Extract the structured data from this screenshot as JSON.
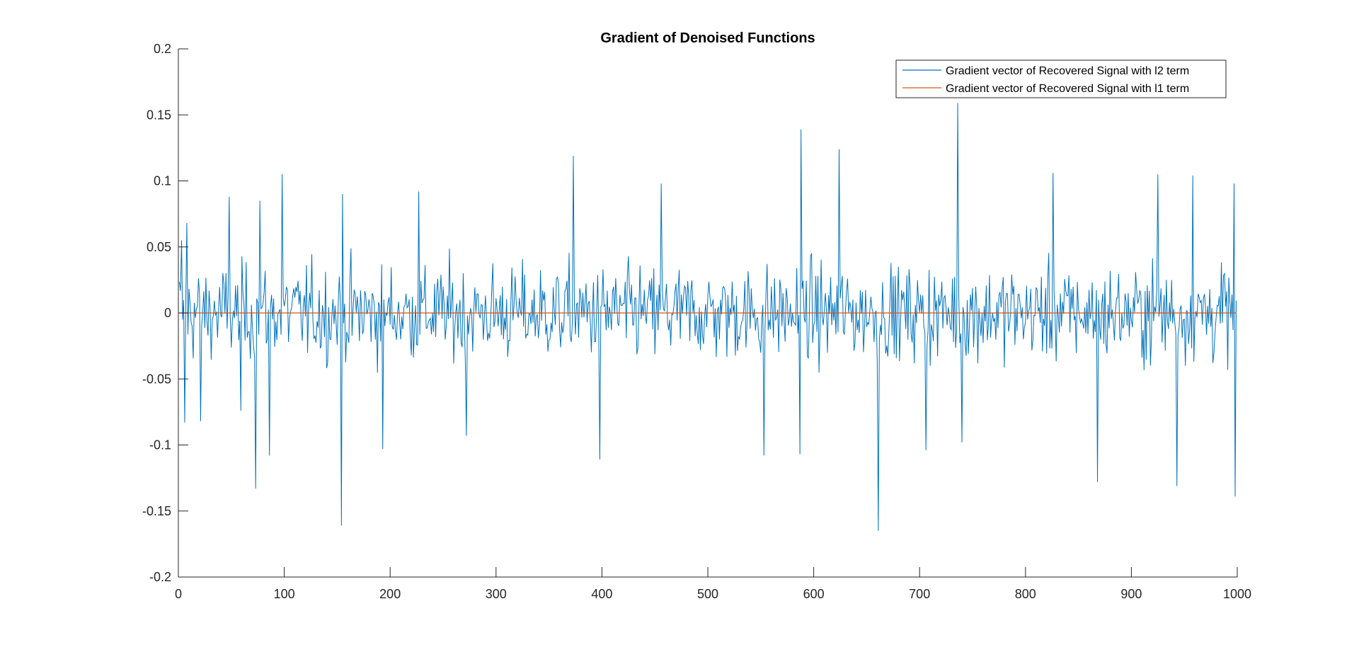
{
  "chart_data": {
    "type": "line",
    "title": "Gradient of Denoised Functions",
    "xlabel": "",
    "ylabel": "",
    "xlim": [
      0,
      1000
    ],
    "ylim": [
      -0.2,
      0.2
    ],
    "x_ticks": [
      0,
      100,
      200,
      300,
      400,
      500,
      600,
      700,
      800,
      900,
      1000
    ],
    "x_tick_labels": [
      "0",
      "100",
      "200",
      "300",
      "400",
      "500",
      "600",
      "700",
      "800",
      "900",
      "1000"
    ],
    "y_ticks": [
      0.2,
      0.15,
      0.1,
      0.05,
      0,
      -0.05,
      -0.1,
      -0.15,
      -0.2
    ],
    "y_tick_labels": [
      "0.2",
      "0.15",
      "0.1",
      "0.05",
      "0",
      "-0.05",
      "-0.1",
      "-0.15",
      "-0.2"
    ],
    "grid": false,
    "legend_position": "top-right",
    "series": [
      {
        "name": "Gradient vector of Recovered Signal with l2 term",
        "color": "#0072BD",
        "x_range": [
          1,
          999
        ],
        "amplitude": 0.03,
        "notable_points": [
          {
            "x": 3,
            "y": 0.055
          },
          {
            "x": 6,
            "y": -0.083
          },
          {
            "x": 8,
            "y": 0.068
          },
          {
            "x": 21,
            "y": -0.082
          },
          {
            "x": 48,
            "y": 0.088
          },
          {
            "x": 59,
            "y": -0.074
          },
          {
            "x": 73,
            "y": -0.133
          },
          {
            "x": 77,
            "y": 0.085
          },
          {
            "x": 86,
            "y": -0.108
          },
          {
            "x": 98,
            "y": 0.105
          },
          {
            "x": 154,
            "y": -0.161
          },
          {
            "x": 155,
            "y": 0.09
          },
          {
            "x": 193,
            "y": -0.103
          },
          {
            "x": 227,
            "y": 0.092
          },
          {
            "x": 272,
            "y": -0.093
          },
          {
            "x": 373,
            "y": 0.119
          },
          {
            "x": 398,
            "y": -0.111
          },
          {
            "x": 456,
            "y": 0.098
          },
          {
            "x": 553,
            "y": -0.108
          },
          {
            "x": 588,
            "y": 0.139
          },
          {
            "x": 587,
            "y": -0.107
          },
          {
            "x": 624,
            "y": 0.124
          },
          {
            "x": 661,
            "y": -0.165
          },
          {
            "x": 706,
            "y": -0.104
          },
          {
            "x": 736,
            "y": 0.159
          },
          {
            "x": 740,
            "y": -0.098
          },
          {
            "x": 826,
            "y": 0.106
          },
          {
            "x": 868,
            "y": -0.128
          },
          {
            "x": 925,
            "y": 0.105
          },
          {
            "x": 943,
            "y": -0.131
          },
          {
            "x": 958,
            "y": 0.104
          },
          {
            "x": 997,
            "y": 0.098
          },
          {
            "x": 998,
            "y": -0.139
          }
        ]
      },
      {
        "name": "Gradient vector of Recovered Signal with l1 term",
        "color": "#D95319",
        "x": [
          1,
          999
        ],
        "values": [
          0,
          0
        ]
      }
    ]
  }
}
